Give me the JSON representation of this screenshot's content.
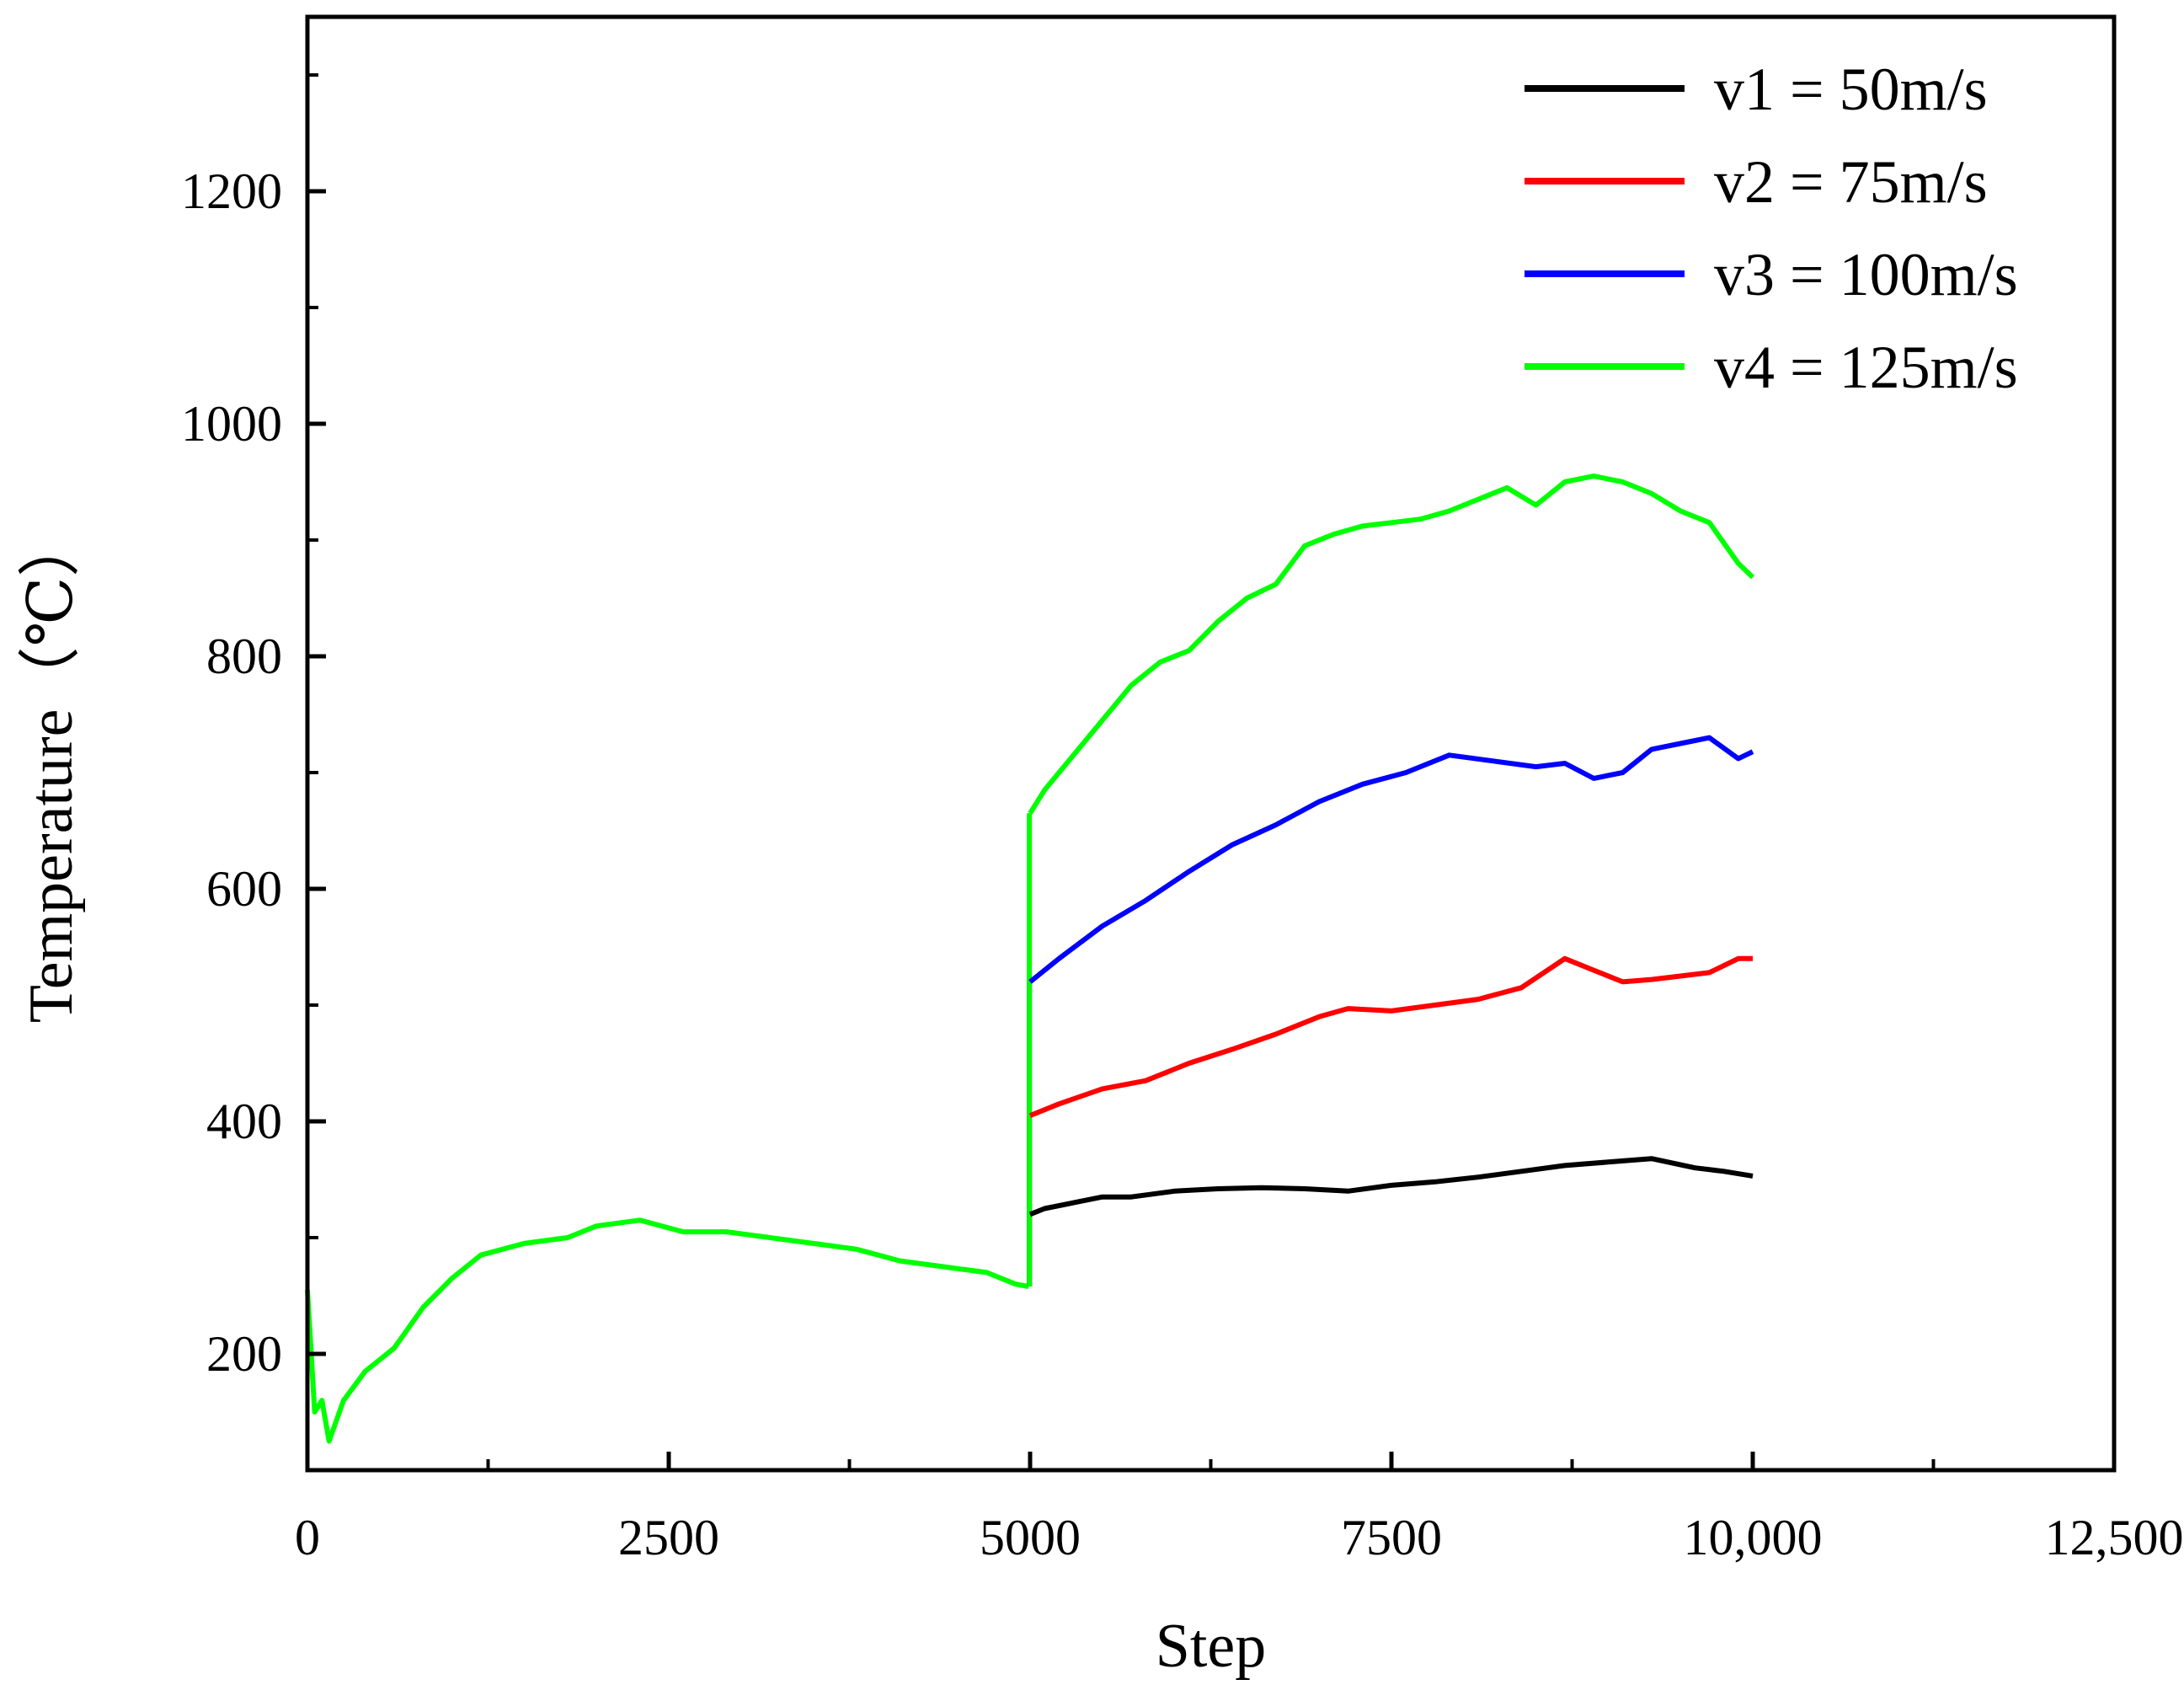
{
  "chart_data": {
    "type": "line",
    "xlabel": "Step",
    "ylabel": "Temperature（℃）",
    "xlim": [
      0,
      12500
    ],
    "ylim": [
      100,
      1350
    ],
    "x_ticks": [
      0,
      2500,
      5000,
      7500,
      10000,
      12500
    ],
    "x_tick_labels": [
      "0",
      "2500",
      "5000",
      "7500",
      "10,000",
      "12,500"
    ],
    "y_ticks": [
      200,
      400,
      600,
      800,
      1000,
      1200
    ],
    "y_tick_labels": [
      "200",
      "400",
      "600",
      "800",
      "1000",
      "1200"
    ],
    "grid": false,
    "legend_position": "top-right",
    "shared_segment": {
      "color": "#00ff00",
      "x": [
        0,
        50,
        100,
        150,
        250,
        400,
        600,
        800,
        1000,
        1200,
        1500,
        1800,
        2000,
        2300,
        2600,
        2900,
        3200,
        3500,
        3800,
        4100,
        4400,
        4700,
        4900,
        4990
      ],
      "y": [
        255,
        150,
        160,
        125,
        160,
        185,
        205,
        240,
        265,
        285,
        295,
        300,
        310,
        315,
        305,
        305,
        300,
        295,
        290,
        280,
        275,
        270,
        260,
        258
      ]
    },
    "series": [
      {
        "name": "v1 = 50m/s",
        "color": "#000000",
        "x": [
          5000,
          5100,
          5300,
          5500,
          5700,
          6000,
          6300,
          6600,
          6900,
          7200,
          7500,
          7800,
          8100,
          8400,
          8700,
          9000,
          9300,
          9600,
          9800,
          10000
        ],
        "y": [
          320,
          325,
          330,
          335,
          335,
          340,
          342,
          343,
          342,
          340,
          345,
          348,
          352,
          357,
          362,
          365,
          368,
          360,
          357,
          353
        ]
      },
      {
        "name": "v2 = 75m/s",
        "color": "#ff0000",
        "x": [
          5000,
          5200,
          5500,
          5800,
          6100,
          6400,
          6700,
          7000,
          7200,
          7500,
          7800,
          8100,
          8400,
          8700,
          8900,
          9100,
          9300,
          9500,
          9700,
          9900,
          10000
        ],
        "y": [
          405,
          415,
          428,
          435,
          450,
          462,
          475,
          490,
          497,
          495,
          500,
          505,
          515,
          540,
          530,
          520,
          522,
          525,
          528,
          540,
          540
        ]
      },
      {
        "name": "v3 = 100m/s",
        "color": "#0000ff",
        "x": [
          5000,
          5200,
          5500,
          5800,
          6100,
          6400,
          6700,
          7000,
          7300,
          7600,
          7900,
          8200,
          8500,
          8700,
          8900,
          9100,
          9300,
          9500,
          9700,
          9900,
          10000
        ],
        "y": [
          520,
          540,
          568,
          590,
          615,
          638,
          655,
          675,
          690,
          700,
          715,
          710,
          705,
          708,
          695,
          700,
          720,
          725,
          730,
          712,
          718
        ]
      },
      {
        "name": "v4 = 125m/s",
        "color": "#00ff00",
        "x": [
          5000,
          5100,
          5300,
          5500,
          5700,
          5900,
          6100,
          6300,
          6500,
          6700,
          6900,
          7100,
          7300,
          7500,
          7700,
          7900,
          8100,
          8300,
          8500,
          8700,
          8900,
          9100,
          9300,
          9500,
          9700,
          9900,
          10000
        ],
        "y": [
          665,
          685,
          715,
          745,
          775,
          795,
          805,
          830,
          850,
          862,
          895,
          905,
          912,
          915,
          918,
          925,
          935,
          945,
          930,
          950,
          955,
          950,
          940,
          925,
          915,
          880,
          868
        ]
      }
    ]
  }
}
